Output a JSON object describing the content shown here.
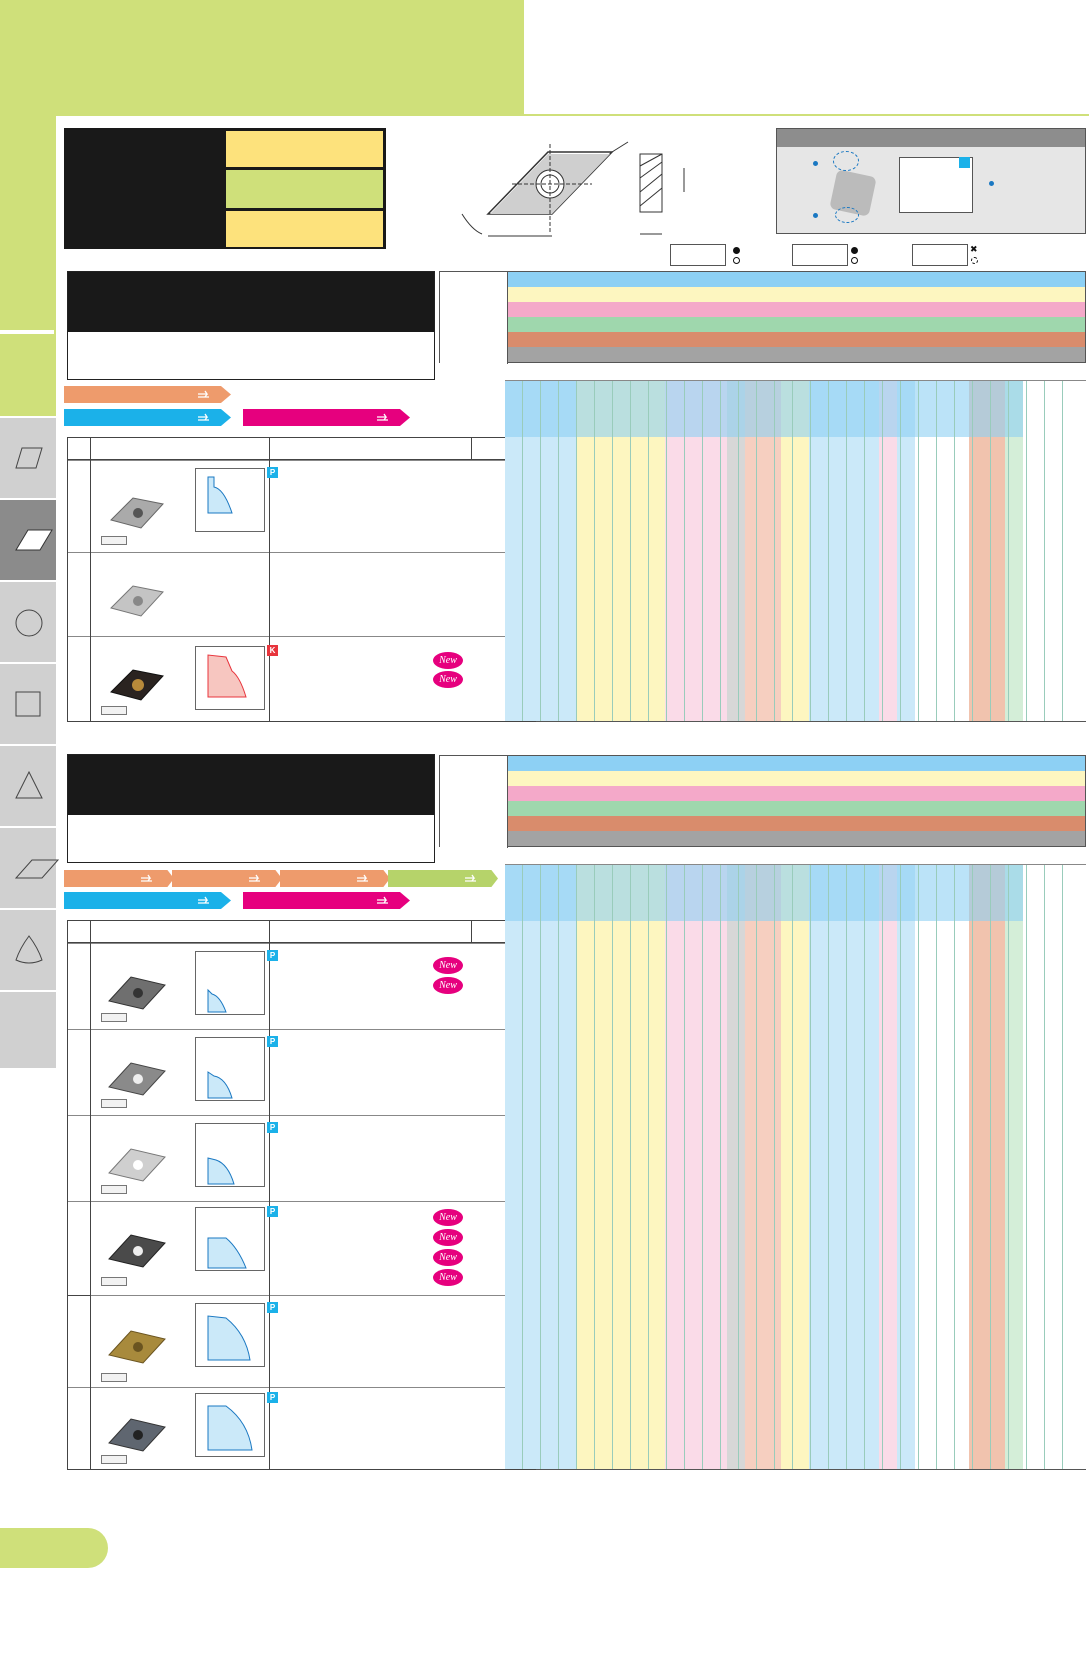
{
  "page": {
    "badges": {
      "new_label": "New"
    },
    "chip_tags": {
      "p": "P",
      "k": "K"
    },
    "colors": {
      "green": "#cfe07a",
      "yellow": "#fde27c",
      "blue": "#8dd0f4",
      "lightblue": "#cbe9f9",
      "pink": "#f4a9c9",
      "lightpink": "#fadbe8",
      "lightyellow": "#fdf6c0",
      "orange": "#ee9b6c",
      "brown": "#d98c6c",
      "lightbrown": "#f1c3ae",
      "mint": "#9fd7ad",
      "lightmint": "#d4eed8",
      "gray": "#a3a3a3",
      "cyan": "#1bb1e9",
      "magenta": "#e6007e",
      "red": "#e8343c"
    },
    "icons": [
      "rhombus-icon",
      "circle-icon",
      "square-icon",
      "triangle-icon",
      "parallelogram-icon",
      "trigon-icon",
      "hand-pointer-icon",
      "insert-drawing-icon"
    ]
  }
}
